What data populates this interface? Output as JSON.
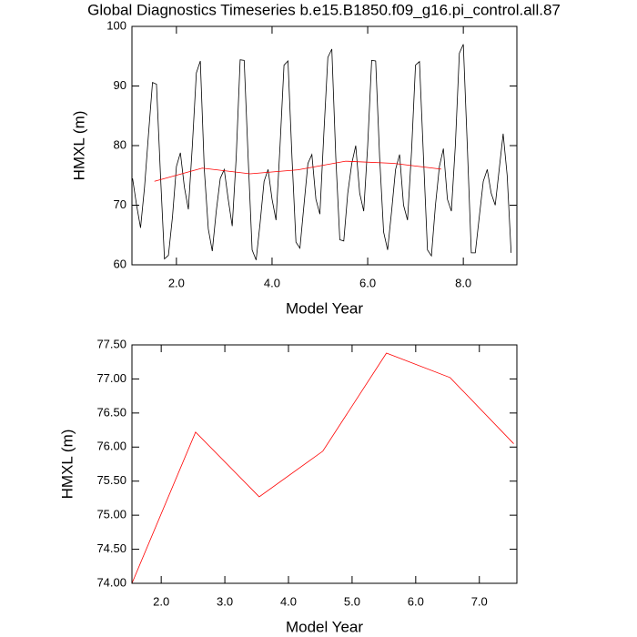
{
  "chart_data": [
    {
      "type": "line",
      "title": "Global Diagnostics Timeseries b.e15.B1850.f09_g16.pi_control.all.87",
      "xlabel": "Model Year",
      "ylabel": "HMXL (m)",
      "xlim": [
        1.07,
        9.12
      ],
      "ylim": [
        60,
        100
      ],
      "xticks": [
        {
          "value": 2,
          "label": "2.0"
        },
        {
          "value": 4,
          "label": "4.0"
        },
        {
          "value": 6,
          "label": "6.0"
        },
        {
          "value": 8,
          "label": "8.0"
        }
      ],
      "yticks": [
        60,
        70,
        80,
        90,
        100
      ],
      "series": [
        {
          "color": "#000000",
          "x": [
            1.083,
            1.167,
            1.25,
            1.333,
            1.417,
            1.5,
            1.583,
            1.667,
            1.75,
            1.833,
            1.917,
            2.0,
            2.083,
            2.167,
            2.25,
            2.333,
            2.417,
            2.5,
            2.583,
            2.667,
            2.75,
            2.833,
            2.917,
            3.0,
            3.083,
            3.167,
            3.25,
            3.333,
            3.417,
            3.5,
            3.583,
            3.667,
            3.75,
            3.833,
            3.917,
            4.0,
            4.083,
            4.167,
            4.25,
            4.333,
            4.417,
            4.5,
            4.583,
            4.667,
            4.75,
            4.833,
            4.917,
            5.0,
            5.083,
            5.167,
            5.25,
            5.333,
            5.417,
            5.5,
            5.583,
            5.667,
            5.75,
            5.833,
            5.917,
            6.0,
            6.083,
            6.167,
            6.25,
            6.333,
            6.417,
            6.5,
            6.583,
            6.667,
            6.75,
            6.833,
            6.917,
            7.0,
            7.083,
            7.167,
            7.25,
            7.333,
            7.417,
            7.5,
            7.583,
            7.667,
            7.75,
            7.833,
            7.917,
            8.0,
            8.083,
            8.167,
            8.25,
            8.333,
            8.417,
            8.5,
            8.583,
            8.667,
            8.75,
            8.833,
            8.917,
            9.0
          ],
          "values": [
            74.5,
            70,
            66.2,
            73,
            82,
            90.6,
            90.3,
            75,
            61,
            61.6,
            68,
            76.5,
            78.8,
            73,
            69.3,
            80,
            92.2,
            94.2,
            76,
            66,
            62.3,
            69,
            74.5,
            76,
            71,
            66.5,
            78,
            94.4,
            94.3,
            78,
            62.5,
            60.8,
            67,
            74,
            76,
            71,
            67.5,
            80,
            93.5,
            94.2,
            78,
            63.8,
            62.8,
            70,
            77,
            78.5,
            71,
            68.5,
            82,
            94.8,
            96.2,
            78,
            64.2,
            64,
            72,
            77,
            80,
            72,
            69,
            80,
            94.3,
            94.2,
            78,
            65.5,
            62.5,
            69,
            76,
            78.5,
            70,
            67.5,
            79,
            93.5,
            94.1,
            78,
            62.5,
            61.5,
            70,
            76.5,
            79.5,
            71,
            69,
            80,
            95.5,
            97,
            80,
            62,
            62,
            68,
            74,
            76,
            72,
            70,
            76,
            82,
            75,
            62
          ]
        },
        {
          "color": "#ff0000",
          "x": [
            1.54,
            2.54,
            3.54,
            4.54,
            5.54,
            6.54,
            7.54
          ],
          "values": [
            74.0,
            76.22,
            75.27,
            75.94,
            77.38,
            77.02,
            76.05
          ]
        }
      ]
    },
    {
      "type": "line",
      "xlabel": "Model Year",
      "ylabel": "HMXL (m)",
      "xlim": [
        1.54,
        7.59
      ],
      "ylim": [
        74,
        77.5
      ],
      "xticks": [
        {
          "value": 2,
          "label": "2.0"
        },
        {
          "value": 3,
          "label": "3.0"
        },
        {
          "value": 4,
          "label": "4.0"
        },
        {
          "value": 5,
          "label": "5.0"
        },
        {
          "value": 6,
          "label": "6.0"
        },
        {
          "value": 7,
          "label": "7.0"
        }
      ],
      "yticks": [
        {
          "value": 74,
          "label": "74.00"
        },
        {
          "value": 74.5,
          "label": "74.50"
        },
        {
          "value": 75,
          "label": "75.00"
        },
        {
          "value": 75.5,
          "label": "75.50"
        },
        {
          "value": 76,
          "label": "76.00"
        },
        {
          "value": 76.5,
          "label": "76.50"
        },
        {
          "value": 77,
          "label": "77.00"
        },
        {
          "value": 77.5,
          "label": "77.50"
        }
      ],
      "series": [
        {
          "color": "#ff0000",
          "x": [
            1.54,
            2.54,
            3.54,
            4.54,
            5.54,
            6.54,
            7.54
          ],
          "values": [
            74.0,
            76.22,
            75.27,
            75.94,
            77.38,
            77.02,
            76.05
          ]
        }
      ]
    }
  ]
}
